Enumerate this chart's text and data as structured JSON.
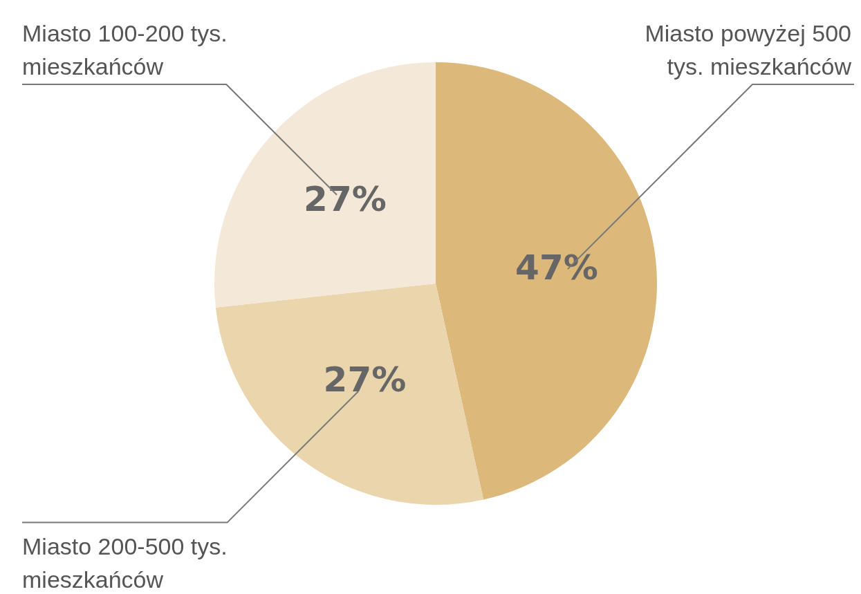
{
  "chart_data": {
    "type": "pie",
    "categories": [
      "Miasto powyżej 500 tys. mieszkańców",
      "Miasto 200-500 tys. mieszkańców",
      "Miasto 100-200 tys. mieszkańców"
    ],
    "values": [
      47,
      27,
      27
    ],
    "colors": [
      "#dcb87a",
      "#ebd5ad",
      "#f4e9d8"
    ],
    "value_labels": [
      "47%",
      "27%",
      "27%"
    ],
    "legend": false
  }
}
